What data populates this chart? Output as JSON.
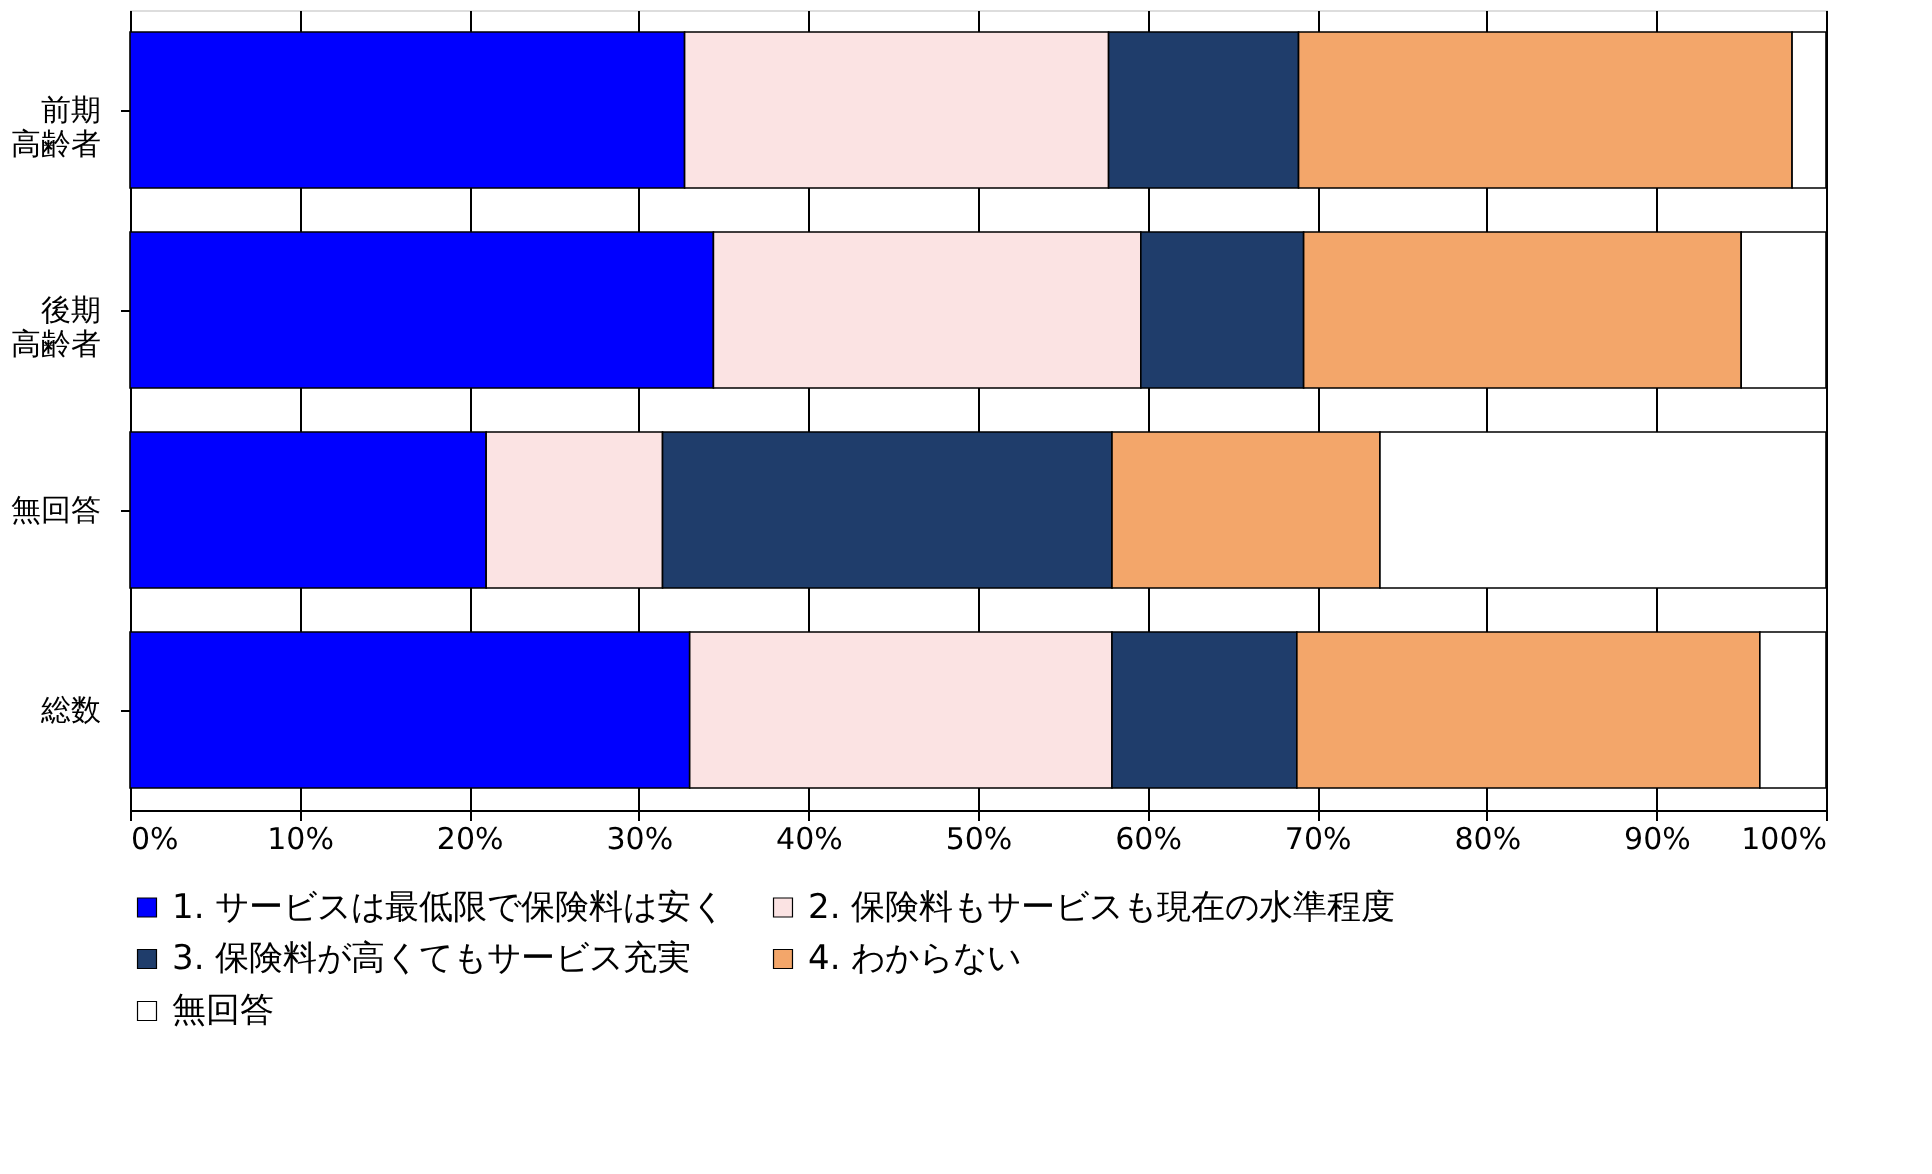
{
  "chart_data": {
    "type": "bar",
    "orientation": "horizontal",
    "stacked": true,
    "categories": [
      "前期高齢者",
      "後期高齢者",
      "無回答",
      "総数"
    ],
    "series": [
      {
        "name": "1. サービスは最低限で保険料は安く",
        "color": "#0000ff",
        "values": [
          32.7,
          34.4,
          21.0,
          33.0
        ]
      },
      {
        "name": "2. 保険料もサービスも現在の水準程度",
        "color": "#fbe3e3",
        "values": [
          25.0,
          25.2,
          10.4,
          24.9
        ]
      },
      {
        "name": "3. 保険料が高くてもサービス充実",
        "color": "#1f3d6b",
        "values": [
          11.2,
          9.6,
          26.5,
          10.9
        ]
      },
      {
        "name": "4. わからない",
        "color": "#f3a66a",
        "values": [
          29.1,
          25.8,
          15.8,
          27.3
        ]
      },
      {
        "name": "無回答",
        "color": "#ffffff",
        "values": [
          2.0,
          5.0,
          26.3,
          3.9
        ]
      }
    ],
    "xlim": [
      0,
      100
    ],
    "xticks": [
      {
        "value": 0,
        "label": "0%"
      },
      {
        "value": 10,
        "label": "10%"
      },
      {
        "value": 20,
        "label": "20%"
      },
      {
        "value": 30,
        "label": "30%"
      },
      {
        "value": 40,
        "label": "40%"
      },
      {
        "value": 50,
        "label": "50%"
      },
      {
        "value": 60,
        "label": "60%"
      },
      {
        "value": 70,
        "label": "70%"
      },
      {
        "value": 80,
        "label": "80%"
      },
      {
        "value": 90,
        "label": "90%"
      },
      {
        "value": 100,
        "label": "100%"
      }
    ],
    "grid": "x",
    "legend": "bottom"
  }
}
